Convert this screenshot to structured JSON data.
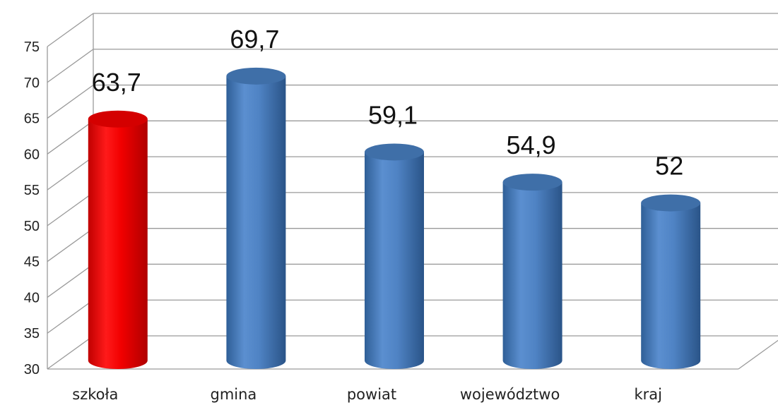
{
  "chart_data": {
    "type": "bar",
    "categories": [
      "szkoła",
      "gmina",
      "powiat",
      "województwo",
      "kraj"
    ],
    "values": [
      63.7,
      69.7,
      59.1,
      54.9,
      52
    ],
    "data_labels": [
      "63,7",
      "69,7",
      "59,1",
      "54,9",
      "52"
    ],
    "y_ticks": [
      "30",
      "35",
      "40",
      "45",
      "50",
      "55",
      "60",
      "65",
      "70",
      "75"
    ],
    "ylim": [
      30,
      75
    ],
    "grid": true,
    "legend": "none",
    "style": "3d-cylinder",
    "colors": {
      "highlight": "#e00000",
      "default": "#4a7ebb"
    },
    "highlight_index": 0
  }
}
